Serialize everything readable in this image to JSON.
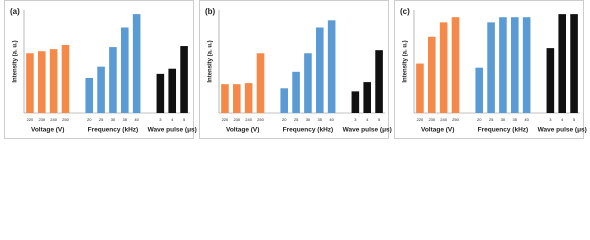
{
  "chart_data": [
    {
      "type": "bar",
      "label": "(a)",
      "ylabel": "Intensity (a. u.)",
      "ylim": [
        0,
        100
      ],
      "groups": [
        {
          "name": "Voltage (V)",
          "color": "#f4894a",
          "categories": [
            "220",
            "230",
            "240",
            "250"
          ],
          "values": [
            58,
            60,
            62,
            66
          ]
        },
        {
          "name": "Frequency (kHz)",
          "color": "#5b9bd5",
          "categories": [
            "20",
            "25",
            "30",
            "35",
            "40"
          ],
          "values": [
            34,
            45,
            64,
            83,
            96
          ]
        },
        {
          "name": "Wave pulse (μs)",
          "color": "#111111",
          "categories": [
            "3",
            "4",
            "5"
          ],
          "values": [
            38,
            43,
            65
          ]
        }
      ]
    },
    {
      "type": "bar",
      "label": "(b)",
      "ylabel": "Intensity (a. u.)",
      "ylim": [
        0,
        100
      ],
      "groups": [
        {
          "name": "Voltage (V)",
          "color": "#f4894a",
          "categories": [
            "220",
            "230",
            "240",
            "250"
          ],
          "values": [
            28,
            28,
            29,
            58
          ]
        },
        {
          "name": "Frequency (kHz)",
          "color": "#5b9bd5",
          "categories": [
            "20",
            "25",
            "30",
            "35",
            "40"
          ],
          "values": [
            24,
            40,
            58,
            83,
            90
          ]
        },
        {
          "name": "Wave pulse (μs)",
          "color": "#111111",
          "categories": [
            "3",
            "4",
            "5"
          ],
          "values": [
            21,
            30,
            61
          ]
        }
      ]
    },
    {
      "type": "bar",
      "label": "(c)",
      "ylabel": "Intensity (a. u.)",
      "ylim": [
        0,
        100
      ],
      "groups": [
        {
          "name": "Voltage (V)",
          "color": "#f4894a",
          "categories": [
            "220",
            "230",
            "240",
            "250"
          ],
          "values": [
            48,
            74,
            88,
            93
          ]
        },
        {
          "name": "Frequency (kHz)",
          "color": "#5b9bd5",
          "categories": [
            "20",
            "25",
            "30",
            "35",
            "40"
          ],
          "values": [
            44,
            88,
            93,
            93,
            93
          ]
        },
        {
          "name": "Wave pulse (μs)",
          "color": "#111111",
          "categories": [
            "3",
            "4",
            "5"
          ],
          "values": [
            63,
            96,
            96
          ]
        }
      ]
    }
  ]
}
